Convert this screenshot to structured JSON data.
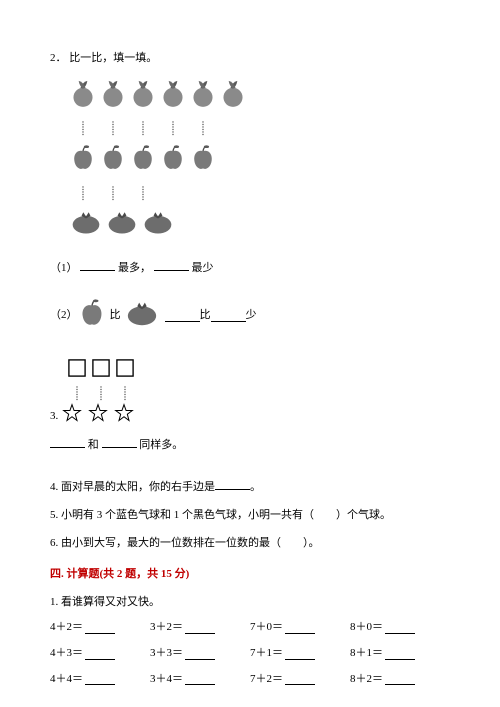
{
  "q2": {
    "number": "2．",
    "title": "比一比，填一填。",
    "row_peach_count": 6,
    "row_apple_count": 5,
    "row_tomato_count": 3,
    "sub1": {
      "label": "（1）",
      "t1": "最多，",
      "t2": "最少"
    },
    "sub2": {
      "label": "（2）",
      "t1": "比",
      "t2": "比",
      "t3": "少"
    },
    "sub3": {
      "label": "3.",
      "t1": "和",
      "t2": "同样多。",
      "box_count": 3,
      "star_count": 3
    },
    "peach_color": "#8a8a8a",
    "apple_color": "#7a7a7a",
    "tomato_color": "#6d6d6d",
    "fruit_size": 26,
    "fruit_size_small": 28
  },
  "q4": {
    "text": "4. 面对早晨的太阳，你的右手边是",
    "end": "。"
  },
  "q5": {
    "text": "5. 小明有 3 个蓝色气球和 1 个黑色气球，小明一共有（　　）个气球。"
  },
  "q6": {
    "text": "6. 由小到大写，最大的一位数排在一位数的最（　　）。"
  },
  "section4": {
    "title": "四. 计算题(共 2 题，共 15 分)",
    "title_color": "#c00000",
    "sub1": "1. 看谁算得又对又快。",
    "rows": [
      [
        "4＋2＝",
        "3＋2＝",
        "7＋0＝",
        "8＋0＝"
      ],
      [
        "4＋3＝",
        "3＋3＝",
        "7＋1＝",
        "8＋1＝"
      ],
      [
        "4＋4＝",
        "3＋4＝",
        "7＋2＝",
        "8＋2＝"
      ]
    ]
  },
  "style": {
    "text_color": "#000000",
    "font_size": 11
  }
}
